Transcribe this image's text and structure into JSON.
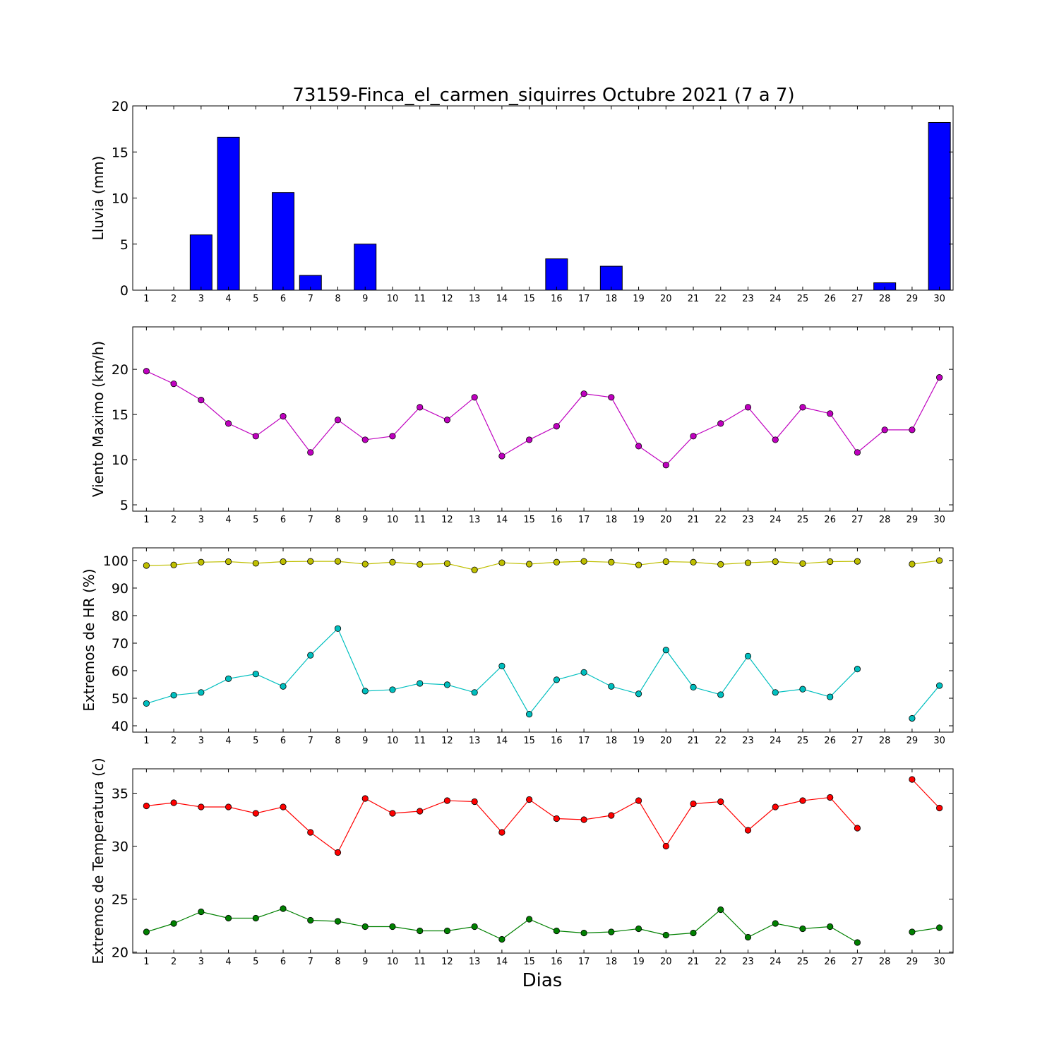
{
  "title": "73159-Finca_el_carmen_siquirres Octubre 2021  (7 a 7)",
  "xlabel": "Dias",
  "days": [
    1,
    2,
    3,
    4,
    5,
    6,
    7,
    8,
    9,
    10,
    11,
    12,
    13,
    14,
    15,
    16,
    17,
    18,
    19,
    20,
    21,
    22,
    23,
    24,
    25,
    26,
    27,
    28,
    29,
    30
  ],
  "chart_data": [
    {
      "type": "bar",
      "ylabel": "Lluvia (mm)",
      "ylim": [
        0,
        20
      ],
      "yticks": [
        0,
        5,
        10,
        15,
        20
      ],
      "series": [
        {
          "color": "#0000ff",
          "values": [
            0,
            0,
            6.0,
            16.6,
            0,
            10.6,
            1.6,
            0,
            5.0,
            0,
            0,
            0,
            0,
            0,
            0,
            3.4,
            0,
            2.6,
            0,
            0,
            0,
            0,
            0,
            0,
            0,
            0,
            0,
            0.8,
            0,
            18.2
          ]
        }
      ]
    },
    {
      "type": "line",
      "ylabel": "Viento Maximo (km/h)",
      "ylim": [
        4.3,
        24.7
      ],
      "yticks": [
        5,
        10,
        15,
        20
      ],
      "series": [
        {
          "color": "#bf00bf",
          "values": [
            19.8,
            18.4,
            16.6,
            14.0,
            12.6,
            14.8,
            10.8,
            14.4,
            12.2,
            12.6,
            15.8,
            14.4,
            16.9,
            10.4,
            12.2,
            13.7,
            17.3,
            16.9,
            11.5,
            9.4,
            12.6,
            14.0,
            15.8,
            12.2,
            15.8,
            15.1,
            10.8,
            13.3,
            13.3,
            19.1
          ]
        }
      ]
    },
    {
      "type": "line",
      "ylabel": "Extremos de HR (%)",
      "ylim": [
        37.7,
        104.6
      ],
      "yticks": [
        40,
        50,
        60,
        70,
        80,
        90,
        100
      ],
      "series": [
        {
          "color": "#bfbf00",
          "values": [
            98.2,
            98.4,
            99.4,
            99.6,
            99.0,
            99.6,
            99.7,
            99.7,
            98.7,
            99.4,
            98.6,
            98.9,
            96.6,
            99.2,
            98.7,
            99.4,
            99.7,
            99.4,
            98.4,
            99.6,
            99.4,
            98.6,
            99.2,
            99.6,
            98.9,
            99.6,
            99.7,
            null,
            98.7,
            100.0
          ]
        },
        {
          "color": "#00bfbf",
          "values": [
            48.1,
            51.1,
            52.1,
            57.1,
            58.8,
            54.3,
            65.6,
            75.3,
            52.6,
            53.1,
            55.4,
            54.9,
            52.1,
            61.7,
            44.2,
            56.7,
            59.4,
            54.3,
            51.6,
            67.5,
            54.0,
            51.3,
            65.3,
            52.1,
            53.3,
            50.5,
            60.6,
            null,
            42.7,
            54.6
          ]
        }
      ]
    },
    {
      "type": "line",
      "ylabel": "Extremos de Temperatura (c)",
      "ylim": [
        19.9,
        37.3
      ],
      "yticks": [
        20,
        25,
        30,
        35
      ],
      "series": [
        {
          "color": "#ff0000",
          "values": [
            33.8,
            34.1,
            33.7,
            33.7,
            33.1,
            33.7,
            31.3,
            29.4,
            34.5,
            33.1,
            33.3,
            34.3,
            34.2,
            31.3,
            34.4,
            32.6,
            32.5,
            32.9,
            34.3,
            30.0,
            34.0,
            34.2,
            31.5,
            33.7,
            34.3,
            34.6,
            31.7,
            null,
            36.3,
            33.6
          ]
        },
        {
          "color": "#008000",
          "values": [
            21.9,
            22.7,
            23.8,
            23.2,
            23.2,
            24.1,
            23.0,
            22.9,
            22.4,
            22.4,
            22.0,
            22.0,
            22.4,
            21.2,
            23.1,
            22.0,
            21.8,
            21.9,
            22.2,
            21.6,
            21.8,
            24.0,
            21.4,
            22.7,
            22.2,
            22.4,
            20.9,
            null,
            21.9,
            22.3
          ]
        }
      ]
    }
  ]
}
